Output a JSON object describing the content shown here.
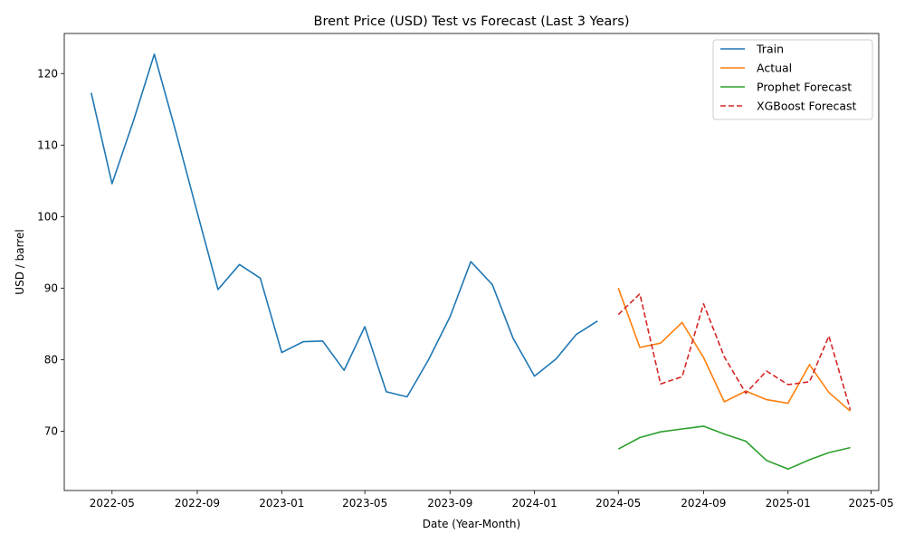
{
  "chart_data": {
    "type": "line",
    "title": "Brent Price (USD) Test vs Forecast (Last 3 Years)",
    "xlabel": "Date (Year-Month)",
    "ylabel": "USD / barrel",
    "x_ticks": [
      "2022-05",
      "2022-09",
      "2023-01",
      "2023-05",
      "2023-09",
      "2024-01",
      "2024-05",
      "2024-09",
      "2025-01",
      "2025-05"
    ],
    "y_ticks": [
      70,
      80,
      90,
      100,
      110,
      120
    ],
    "xlim": [
      "2022-02-21",
      "2025-05-12"
    ],
    "ylim": [
      61.7,
      125.6
    ],
    "grid": false,
    "legend_position": "top-right",
    "series": [
      {
        "name": "Train",
        "color": "#1f77b4",
        "dash": "solid",
        "x": [
          "2022-04-01",
          "2022-05-01",
          "2022-06-01",
          "2022-07-01",
          "2022-08-01",
          "2022-09-01",
          "2022-10-01",
          "2022-11-01",
          "2022-12-01",
          "2023-01-01",
          "2023-02-01",
          "2023-03-01",
          "2023-04-01",
          "2023-05-01",
          "2023-06-01",
          "2023-07-01",
          "2023-08-01",
          "2023-09-01",
          "2023-10-01",
          "2023-11-01",
          "2023-12-01",
          "2024-01-01",
          "2024-02-01",
          "2024-03-01",
          "2024-04-01"
        ],
        "y": [
          117.3,
          104.6,
          113.4,
          122.7,
          111.9,
          100.6,
          89.8,
          93.3,
          91.4,
          81.0,
          82.5,
          82.6,
          78.5,
          84.6,
          75.5,
          74.8,
          80.0,
          86.0,
          93.7,
          90.5,
          83.0,
          77.7,
          80.1,
          83.5,
          85.4
        ]
      },
      {
        "name": "Actual",
        "color": "#ff7f0e",
        "dash": "solid",
        "x": [
          "2024-05-01",
          "2024-06-01",
          "2024-07-01",
          "2024-08-01",
          "2024-09-01",
          "2024-10-01",
          "2024-11-01",
          "2024-12-01",
          "2025-01-01",
          "2025-02-01",
          "2025-03-01",
          "2025-04-01"
        ],
        "y": [
          90.0,
          81.7,
          82.3,
          85.2,
          80.3,
          74.1,
          75.6,
          74.4,
          73.9,
          79.3,
          75.4,
          72.8
        ]
      },
      {
        "name": "Prophet Forecast",
        "color": "#2ca02c",
        "dash": "solid",
        "x": [
          "2024-05-01",
          "2024-06-01",
          "2024-07-01",
          "2024-08-01",
          "2024-09-01",
          "2024-10-01",
          "2024-11-01",
          "2024-12-01",
          "2025-01-01",
          "2025-02-01",
          "2025-03-01",
          "2025-04-01"
        ],
        "y": [
          67.5,
          69.1,
          69.9,
          70.3,
          70.7,
          69.6,
          68.6,
          65.9,
          64.7,
          66.0,
          67.0,
          67.7
        ]
      },
      {
        "name": "XGBoost Forecast",
        "color": "#d62728",
        "dash": "dashed",
        "x": [
          "2024-05-01",
          "2024-06-01",
          "2024-07-01",
          "2024-08-01",
          "2024-09-01",
          "2024-10-01",
          "2024-11-01",
          "2024-12-01",
          "2025-01-01",
          "2025-02-01",
          "2025-03-01",
          "2025-04-01"
        ],
        "y": [
          86.3,
          89.2,
          76.6,
          77.6,
          87.8,
          80.4,
          75.3,
          78.4,
          76.5,
          76.9,
          83.3,
          73.0
        ]
      }
    ]
  }
}
